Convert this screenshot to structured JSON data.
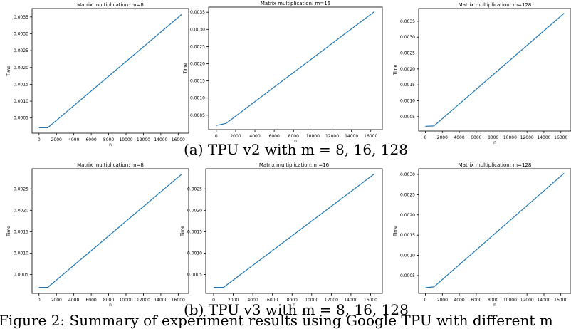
{
  "captions": {
    "a": "(a) TPU v2 with m = 8, 16, 128",
    "b": "(b) TPU v3 with m = 8, 16, 128",
    "figure": "Figure 2: Summary of experiment results using Google TPU with different m"
  },
  "colors": {
    "line": "#1f77b4",
    "axis": "#000000",
    "text": "#000000"
  },
  "chart_data": [
    {
      "type": "line",
      "title": "Matrix multiplication: m=8",
      "xlabel": "n",
      "ylabel": "Time",
      "xlim": [
        -800,
        17200
      ],
      "ylim": [
        5e-05,
        0.00375
      ],
      "xticks": [
        0,
        2000,
        4000,
        6000,
        8000,
        10000,
        12000,
        14000,
        16000
      ],
      "yticks": [
        0.0005,
        0.001,
        0.0015,
        0.002,
        0.0025,
        0.003,
        0.0035
      ],
      "ytick_labels": [
        "0.0005",
        "0.0010",
        "0.0015",
        "0.0020",
        "0.0025",
        "0.0030",
        "0.0035"
      ],
      "x": [
        0,
        1000,
        16384
      ],
      "y": [
        0.00021,
        0.00021,
        0.00357
      ]
    },
    {
      "type": "line",
      "title": "Matrix multiplication: m=16",
      "xlabel": "n",
      "ylabel": "Time",
      "xlim": [
        -800,
        17200
      ],
      "ylim": [
        8e-05,
        0.00365
      ],
      "xticks": [
        0,
        2000,
        4000,
        6000,
        8000,
        10000,
        12000,
        14000,
        16000
      ],
      "yticks": [
        0.0005,
        0.001,
        0.0015,
        0.002,
        0.0025,
        0.003,
        0.0035
      ],
      "ytick_labels": [
        "0.0005",
        "0.0010",
        "0.0015",
        "0.0020",
        "0.0025",
        "0.0030",
        "0.0035"
      ],
      "x": [
        0,
        1000,
        16384
      ],
      "y": [
        0.0002,
        0.00026,
        0.00352
      ]
    },
    {
      "type": "line",
      "title": "Matrix multiplication: m=128",
      "xlabel": "n",
      "ylabel": "Time",
      "xlim": [
        -800,
        17200
      ],
      "ylim": [
        5e-05,
        0.0039
      ],
      "xticks": [
        0,
        2000,
        4000,
        6000,
        8000,
        10000,
        12000,
        14000,
        16000
      ],
      "yticks": [
        0.0005,
        0.001,
        0.0015,
        0.002,
        0.0025,
        0.003,
        0.0035
      ],
      "ytick_labels": [
        "0.0005",
        "0.0010",
        "0.0015",
        "0.0020",
        "0.0025",
        "0.0030",
        "0.0035"
      ],
      "x": [
        0,
        1000,
        16384
      ],
      "y": [
        0.0002,
        0.00021,
        0.00375
      ]
    },
    {
      "type": "line",
      "title": "Matrix multiplication: m=8",
      "xlabel": "n",
      "ylabel": "Time",
      "xlim": [
        -800,
        17200
      ],
      "ylim": [
        6e-05,
        0.00297
      ],
      "xticks": [
        0,
        2000,
        4000,
        6000,
        8000,
        10000,
        12000,
        14000,
        16000
      ],
      "yticks": [
        0.0005,
        0.001,
        0.0015,
        0.002,
        0.0025
      ],
      "ytick_labels": [
        "0.0005",
        "0.0010",
        "0.0015",
        "0.0020",
        "0.0025"
      ],
      "x": [
        0,
        1000,
        16384
      ],
      "y": [
        0.0002,
        0.0002,
        0.00284
      ]
    },
    {
      "type": "line",
      "title": "Matrix multiplication: m=16",
      "xlabel": "n",
      "ylabel": "Time",
      "xlim": [
        -800,
        17200
      ],
      "ylim": [
        6e-05,
        0.00297
      ],
      "xticks": [
        0,
        2000,
        4000,
        6000,
        8000,
        10000,
        12000,
        14000,
        16000
      ],
      "yticks": [
        0.0005,
        0.001,
        0.0015,
        0.002,
        0.0025
      ],
      "ytick_labels": [
        "0.0005",
        "0.0010",
        "0.0015",
        "0.0020",
        "0.0025"
      ],
      "x": [
        0,
        1000,
        16384
      ],
      "y": [
        0.0002,
        0.0002,
        0.00285
      ]
    },
    {
      "type": "line",
      "title": "Matrix multiplication: m=128",
      "xlabel": "n",
      "ylabel": "Time",
      "xlim": [
        -800,
        17200
      ],
      "ylim": [
        6e-05,
        0.00314
      ],
      "xticks": [
        0,
        2000,
        4000,
        6000,
        8000,
        10000,
        12000,
        14000,
        16000
      ],
      "yticks": [
        0.0005,
        0.001,
        0.0015,
        0.002,
        0.0025,
        0.003
      ],
      "ytick_labels": [
        "0.0005",
        "0.0010",
        "0.0015",
        "0.0020",
        "0.0025",
        "0.0030"
      ],
      "x": [
        0,
        1000,
        16384
      ],
      "y": [
        0.0002,
        0.00022,
        0.00303
      ]
    }
  ]
}
